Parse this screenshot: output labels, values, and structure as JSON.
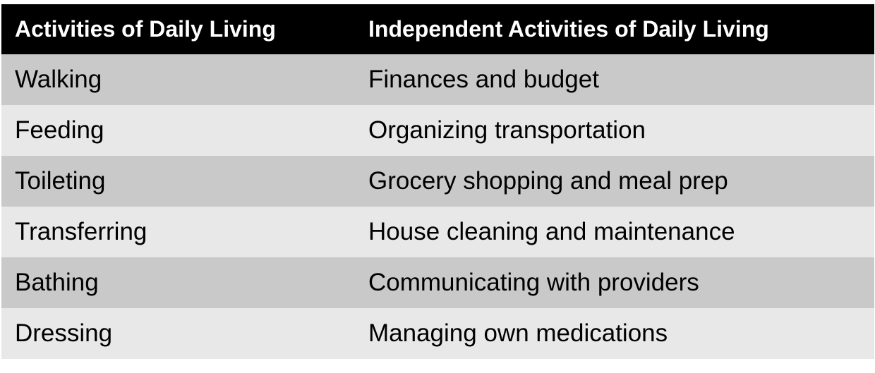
{
  "table": {
    "headers": [
      "Activities of Daily Living",
      "Independent Activities of Daily Living"
    ],
    "rows": [
      [
        "Walking",
        "Finances and budget"
      ],
      [
        "Feeding",
        "Organizing transportation"
      ],
      [
        "Toileting",
        "Grocery shopping and meal prep"
      ],
      [
        "Transferring",
        "House cleaning and maintenance"
      ],
      [
        "Bathing",
        "Communicating with providers"
      ],
      [
        "Dressing",
        "Managing own medications"
      ]
    ],
    "colors": {
      "header_bg": "#000000",
      "header_text": "#ffffff",
      "row_dark": "#c9c9c9",
      "row_light": "#e8e8e8"
    }
  }
}
